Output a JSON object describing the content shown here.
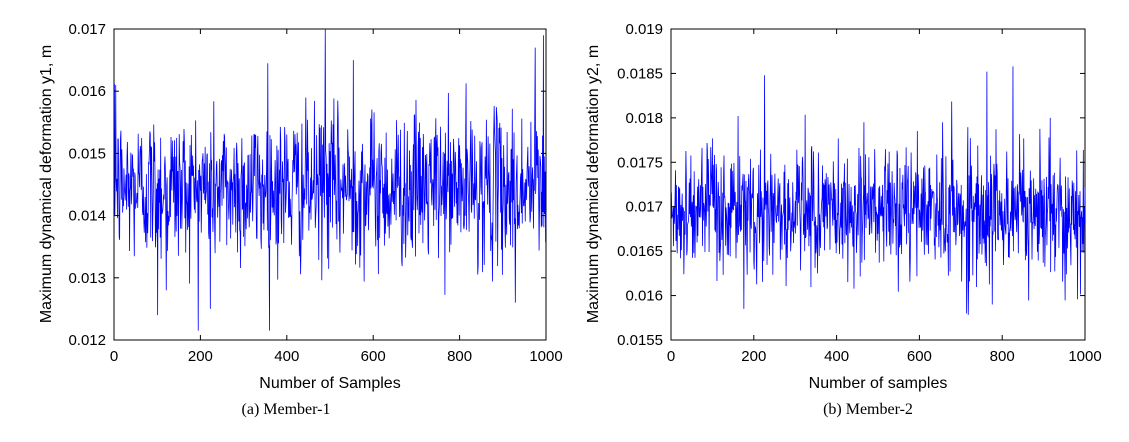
{
  "chart_data": [
    {
      "type": "line",
      "caption": "(a) Member-1",
      "xlabel": "Number of Samples",
      "ylabel": "Maximum dynamical deformation y1, m",
      "xlim": [
        0,
        1000
      ],
      "ylim": [
        0.012,
        0.017
      ],
      "xticks": [
        "0",
        "200",
        "400",
        "600",
        "800",
        "1000"
      ],
      "yticks": [
        "0.012",
        "0.013",
        "0.014",
        "0.015",
        "0.016",
        "0.017"
      ],
      "line_color": "#0000ff",
      "grid": false,
      "n_samples": 1000,
      "mean": 0.01445,
      "std": 0.0006,
      "noted_extremes": [
        {
          "x": 3,
          "y": 0.0161
        },
        {
          "x": 100,
          "y": 0.0124
        },
        {
          "x": 120,
          "y": 0.0128
        },
        {
          "x": 222,
          "y": 0.0125
        },
        {
          "x": 355,
          "y": 0.01645
        },
        {
          "x": 488,
          "y": 0.017
        },
        {
          "x": 553,
          "y": 0.0165
        },
        {
          "x": 928,
          "y": 0.0126
        },
        {
          "x": 974,
          "y": 0.0167
        },
        {
          "x": 993,
          "y": 0.0169
        }
      ]
    },
    {
      "type": "line",
      "caption": "(b) Member-2",
      "xlabel": "Number of samples",
      "ylabel": "Maximum dynamical deformation y2, m",
      "xlim": [
        0,
        1000
      ],
      "ylim": [
        0.0155,
        0.019
      ],
      "xticks": [
        "0",
        "200",
        "400",
        "600",
        "800",
        "1000"
      ],
      "yticks": [
        "0.0155",
        "0.016",
        "0.0165",
        "0.017",
        "0.0175",
        "0.018",
        "0.0185",
        "0.019"
      ],
      "line_color": "#0000ff",
      "grid": false,
      "n_samples": 1000,
      "mean": 0.01695,
      "std": 0.00035,
      "noted_extremes": [
        {
          "x": 175,
          "y": 0.01585
        },
        {
          "x": 225,
          "y": 0.01848
        },
        {
          "x": 465,
          "y": 0.01795
        },
        {
          "x": 655,
          "y": 0.01795
        },
        {
          "x": 713,
          "y": 0.0158
        },
        {
          "x": 762,
          "y": 0.01852
        },
        {
          "x": 775,
          "y": 0.0159
        },
        {
          "x": 825,
          "y": 0.01858
        },
        {
          "x": 915,
          "y": 0.018
        }
      ]
    }
  ]
}
